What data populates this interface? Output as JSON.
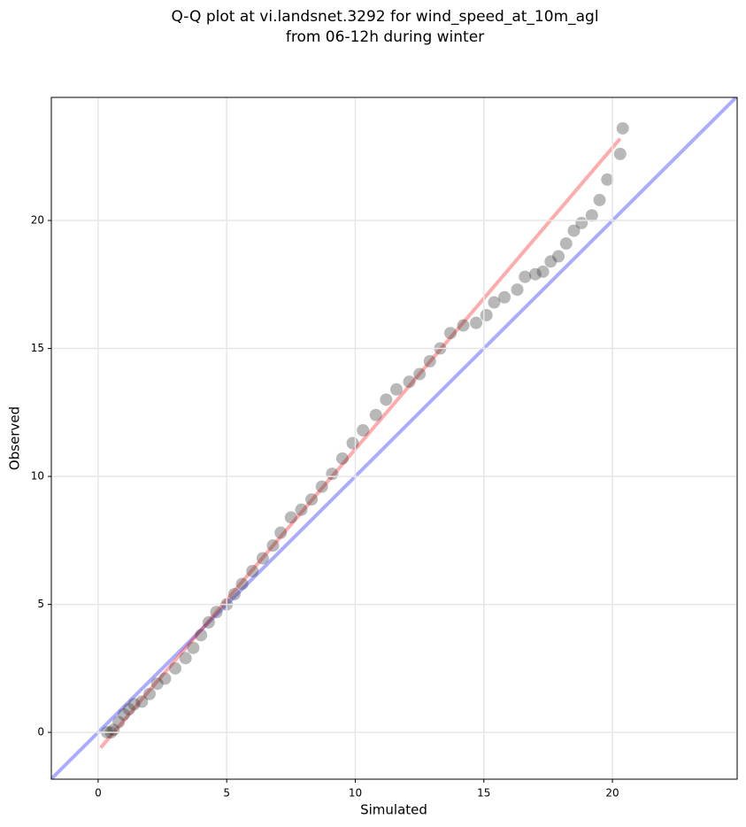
{
  "chart_data": {
    "type": "scatter",
    "title": [
      "Q-Q plot at vi.landsnet.3292 for wind_speed_at_10m_agl",
      "from 06-12h during winter"
    ],
    "x_label": "Simulated",
    "y_label": "Observed",
    "xlim": [
      -1.82,
      24.85
    ],
    "ylim": [
      -1.83,
      24.81
    ],
    "xticks": [
      0,
      5,
      10,
      15,
      20
    ],
    "yticks": [
      0,
      5,
      10,
      15,
      20
    ],
    "grid": true,
    "identity_line": {
      "color": "#0000ff"
    },
    "fit_line": {
      "color": "#ff0000",
      "x": [
        0.1,
        20.3
      ],
      "y": [
        -0.6,
        23.2
      ]
    },
    "series": [
      {
        "color": "#333333",
        "x": [
          0.35,
          0.5,
          0.6,
          0.8,
          1.0,
          1.2,
          1.4,
          1.7,
          2.0,
          2.3,
          2.6,
          3.0,
          3.4,
          3.7,
          4.0,
          4.3,
          4.6,
          5.0,
          5.3,
          5.6,
          6.0,
          6.4,
          6.8,
          7.1,
          7.5,
          7.9,
          8.3,
          8.7,
          9.1,
          9.5,
          9.9,
          10.3,
          10.8,
          11.2,
          11.6,
          12.1,
          12.5,
          12.9,
          13.3,
          13.7,
          14.2,
          14.7,
          15.1,
          15.4,
          15.8,
          16.3,
          16.6,
          17.0,
          17.3,
          17.6,
          17.9,
          18.2,
          18.5,
          18.8,
          19.2,
          19.5,
          19.8,
          20.3,
          20.4
        ],
        "values": [
          0.0,
          0.0,
          0.1,
          0.4,
          0.7,
          0.9,
          1.1,
          1.2,
          1.5,
          1.9,
          2.1,
          2.5,
          2.9,
          3.3,
          3.8,
          4.3,
          4.7,
          5.0,
          5.4,
          5.8,
          6.3,
          6.8,
          7.3,
          7.8,
          8.4,
          8.7,
          9.1,
          9.6,
          10.1,
          10.7,
          11.3,
          11.8,
          12.4,
          13.0,
          13.4,
          13.7,
          14.0,
          14.5,
          15.0,
          15.6,
          15.9,
          16.0,
          16.3,
          16.8,
          17.0,
          17.3,
          17.8,
          17.9,
          18.0,
          18.4,
          18.6,
          19.1,
          19.6,
          19.9,
          20.2,
          20.8,
          21.6,
          22.6,
          23.6
        ]
      }
    ]
  }
}
